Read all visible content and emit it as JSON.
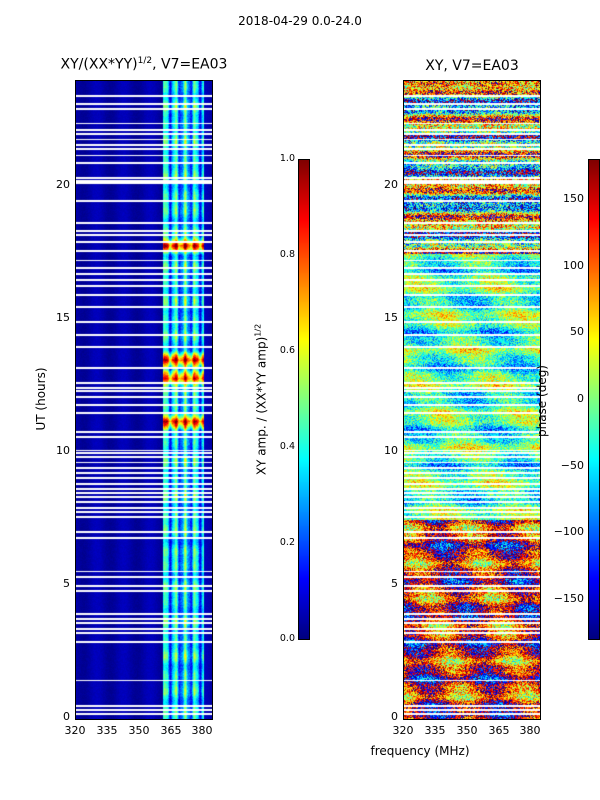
{
  "figure": {
    "suptitle": "2018-04-29 0.0-24.0",
    "shared_xlabel": "frequency (MHz)"
  },
  "chart_data": [
    {
      "type": "heatmap",
      "title": "XY/(XX*YY)",
      "title_sup": "1/2",
      "title_tail": ", V7=EA03",
      "xlabel": "frequency (MHz)",
      "ylabel": "UT (hours)",
      "xlim": [
        320,
        384
      ],
      "ylim": [
        0,
        24
      ],
      "xticks": [
        "320",
        "335",
        "350",
        "365",
        "380"
      ],
      "xtick_values": [
        320,
        335,
        350,
        365,
        380
      ],
      "yticks": [
        "0",
        "5",
        "10",
        "15",
        "20"
      ],
      "ytick_values": [
        0,
        5,
        10,
        15,
        20
      ],
      "colorbar": {
        "label": "XY amp. / (XX*YY amp)",
        "label_sup": "1/2",
        "range": [
          0.0,
          1.0
        ],
        "ticks": [
          "0.0",
          "0.2",
          "0.4",
          "0.6",
          "0.8",
          "1.0"
        ],
        "tick_values": [
          0.0,
          0.2,
          0.4,
          0.6,
          0.8,
          1.0
        ],
        "colormap": "jet"
      },
      "description_values": {
        "background_value": 0.05,
        "active_band_mhz": [
          361,
          380
        ],
        "peak_ut_hours": [
          11.2,
          12.8,
          13.5,
          17.8
        ],
        "peak_value": 0.95
      }
    },
    {
      "type": "heatmap",
      "title": "XY, V7=EA03",
      "xlabel": "frequency (MHz)",
      "ylabel": "",
      "xlim": [
        320,
        384
      ],
      "ylim": [
        0,
        24
      ],
      "xticks": [
        "320",
        "335",
        "350",
        "365",
        "380"
      ],
      "xtick_values": [
        320,
        335,
        350,
        365,
        380
      ],
      "yticks": [
        "0",
        "5",
        "10",
        "15",
        "20"
      ],
      "ytick_values": [
        0,
        5,
        10,
        15,
        20
      ],
      "colorbar": {
        "label": "phase (deg)",
        "range": [
          -180,
          180
        ],
        "ticks": [
          "−150",
          "−100",
          "−50",
          "0",
          "50",
          "100",
          "150"
        ],
        "tick_values": [
          -150,
          -100,
          -50,
          0,
          50,
          100,
          150
        ],
        "colormap": "jet"
      }
    }
  ],
  "gaps_ut_hours": [
    0.18,
    0.35,
    0.5,
    1.45,
    2.9,
    3.25,
    3.4,
    3.6,
    3.75,
    3.95,
    4.8,
    5.0,
    5.35,
    5.55,
    6.8,
    7.05,
    7.6,
    7.8,
    7.95,
    8.15,
    8.35,
    8.5,
    8.65,
    8.85,
    9.05,
    9.25,
    9.45,
    9.65,
    9.85,
    10.0,
    10.1,
    10.6,
    10.8,
    11.5,
    11.8,
    12.1,
    12.35,
    12.45,
    12.65,
    13.2,
    14.0,
    14.45,
    14.95,
    15.5,
    15.95,
    16.3,
    16.5,
    16.75,
    16.95,
    17.25,
    17.6,
    17.95,
    18.2,
    18.35,
    18.65,
    19.5,
    20.15,
    20.25,
    20.35,
    20.9,
    21.2,
    21.45,
    21.6,
    21.8,
    22.0,
    22.15,
    22.4,
    22.95,
    23.15,
    23.45
  ]
}
